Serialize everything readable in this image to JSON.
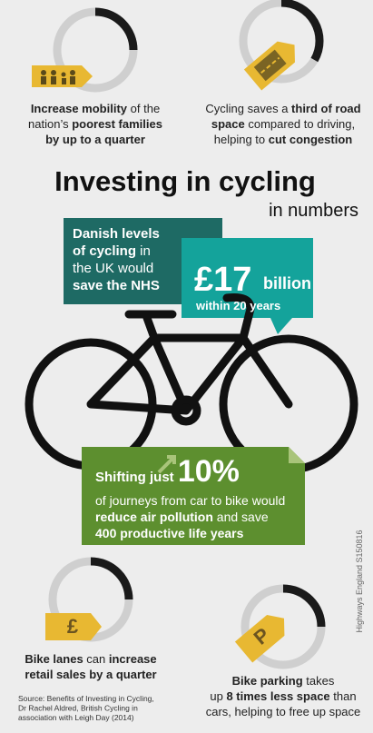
{
  "facts": [
    {
      "lines": [
        [
          {
            "t": "Increase mobility",
            "b": true
          },
          {
            "t": " of the"
          }
        ],
        [
          {
            "t": "nation’s "
          },
          {
            "t": "poorest families",
            "b": true
          }
        ],
        [
          {
            "t": "by up to a quarter",
            "b": true
          }
        ]
      ]
    },
    {
      "lines": [
        [
          {
            "t": "Cycling saves a "
          },
          {
            "t": "third of road",
            "b": true
          }
        ],
        [
          {
            "t": "space",
            "b": true
          },
          {
            "t": " compared to driving,"
          }
        ],
        [
          {
            "t": "helping to "
          },
          {
            "t": "cut congestion",
            "b": true
          }
        ]
      ]
    },
    {
      "lines": [
        [
          {
            "t": "Bike lanes",
            "b": true
          },
          {
            "t": " can "
          },
          {
            "t": "increase",
            "b": true
          }
        ],
        [
          {
            "t": "retail sales by a quarter",
            "b": true
          }
        ]
      ]
    },
    {
      "lines": [
        [
          {
            "t": "Bike parking",
            "b": true
          },
          {
            "t": " takes"
          }
        ],
        [
          {
            "t": "up "
          },
          {
            "t": "8 times less space",
            "b": true
          },
          {
            "t": " than"
          }
        ],
        [
          {
            "t": "cars, helping to free up space"
          }
        ]
      ]
    }
  ],
  "icons": {
    "pound": "£",
    "parking": "P"
  },
  "title": "Investing in cycling",
  "subtitle": "in numbers",
  "danish": {
    "lines": [
      [
        {
          "t": "Danish levels",
          "b": true
        }
      ],
      [
        {
          "t": "of cycling",
          "b": true
        },
        {
          "t": " in"
        }
      ],
      [
        {
          "t": "the UK would"
        }
      ],
      [
        {
          "t": "save the NHS",
          "b": true
        }
      ]
    ]
  },
  "nhs": {
    "amount": "£17",
    "unit": "billion",
    "period": "within 20 years"
  },
  "shift": {
    "lead": "Shifting just ",
    "figure": "10%",
    "lines": [
      [
        {
          "t": "of journeys from car to bike would"
        }
      ],
      [
        {
          "t": "reduce air pollution",
          "b": true
        },
        {
          "t": " and save"
        }
      ],
      [
        {
          "t": "400 productive life years",
          "b": true
        }
      ]
    ]
  },
  "source": {
    "lines": [
      [
        {
          "t": "Source: Benefits of Investing in Cycling,"
        }
      ],
      [
        {
          "t": "Dr Rachel Aldred, British Cycling in"
        }
      ],
      [
        {
          "t": "association with Leigh Day (2014)"
        }
      ]
    ]
  },
  "credit": "Highways England S150816"
}
